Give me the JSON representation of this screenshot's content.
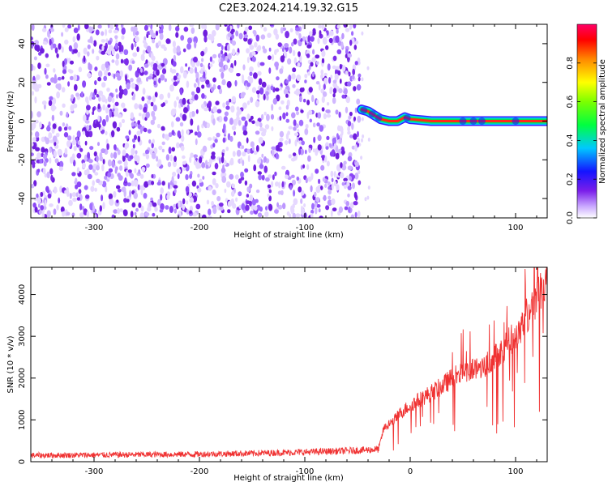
{
  "title": "C2E3.2024.214.19.32.G15",
  "chart_data": [
    {
      "type": "heatmap",
      "xlabel": "Height of straight line (km)",
      "ylabel": "Frequency (Hz)",
      "xlim": [
        -360,
        130
      ],
      "ylim": [
        -50,
        50
      ],
      "x_ticks": [
        -300,
        -200,
        -100,
        0,
        100
      ],
      "y_ticks": [
        -40,
        -20,
        0,
        20,
        40
      ],
      "noise_region_x": [
        -360,
        -48
      ],
      "signal_track": [
        {
          "x": -46,
          "y": 6
        },
        {
          "x": -40,
          "y": 5
        },
        {
          "x": -34,
          "y": 3
        },
        {
          "x": -28,
          "y": 1
        },
        {
          "x": -20,
          "y": 0
        },
        {
          "x": -12,
          "y": 0
        },
        {
          "x": -5,
          "y": 2
        },
        {
          "x": 0,
          "y": 1
        },
        {
          "x": 20,
          "y": 0
        },
        {
          "x": 50,
          "y": 0
        },
        {
          "x": 80,
          "y": 0
        },
        {
          "x": 110,
          "y": 0
        },
        {
          "x": 130,
          "y": 0
        }
      ],
      "colorbar": {
        "label": "Normalized spectral amplitude",
        "ticks": [
          0.0,
          0.2,
          0.4,
          0.6,
          0.8
        ],
        "tick_labels": [
          "0.0",
          "0.2",
          "0.4",
          "0.6",
          "0.8"
        ],
        "range": [
          0,
          1
        ],
        "colormap": "rainbow (white-violet-blue-cyan-green-yellow-red-magenta)"
      },
      "grid": false
    },
    {
      "type": "line",
      "xlabel": "Height of straight line (km)",
      "ylabel": "SNR (10 * v/v)",
      "xlim": [
        -360,
        130
      ],
      "ylim": [
        0,
        4650
      ],
      "x_ticks": [
        -300,
        -200,
        -100,
        0,
        100
      ],
      "y_ticks": [
        0,
        1000,
        2000,
        3000,
        4000
      ],
      "line_color": "#f03232",
      "series": [
        {
          "x": [
            -360,
            -300,
            -250,
            -200,
            -150,
            -100,
            -60,
            -40,
            -30,
            -25,
            -20,
            -15,
            -10,
            0,
            10,
            20,
            30,
            40,
            50,
            60,
            70,
            80,
            90,
            100,
            110,
            120,
            130
          ],
          "y": [
            150,
            160,
            170,
            180,
            200,
            230,
            260,
            280,
            300,
            800,
            900,
            1000,
            1150,
            1350,
            1500,
            1650,
            1800,
            2000,
            2150,
            2200,
            2300,
            2500,
            2750,
            3050,
            3450,
            3950,
            4400
          ]
        }
      ],
      "grid": false
    }
  ]
}
